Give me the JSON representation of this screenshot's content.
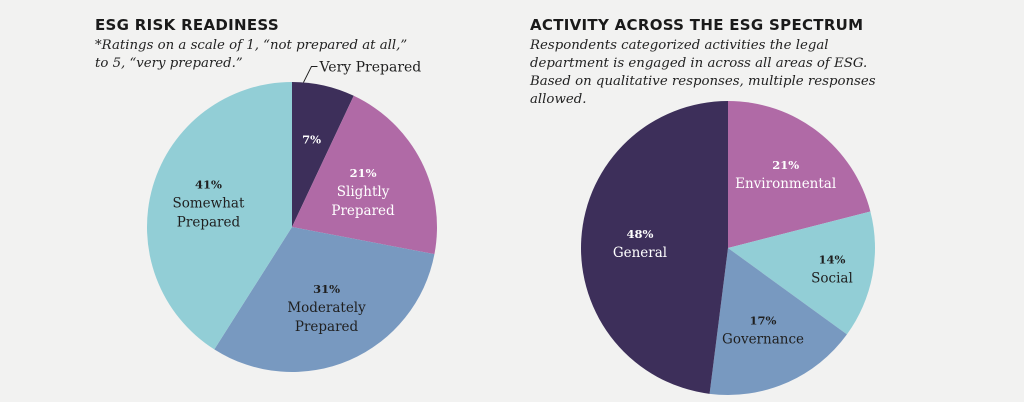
{
  "chart_data": [
    {
      "type": "pie",
      "title": "ESG RISK READINESS",
      "subtitle": "*Ratings on a scale of 1, “not prepared at all,” to 5, “very prepared.”",
      "slices": [
        {
          "label": "Very Prepared",
          "value": 7,
          "pct_label": "7%",
          "color": "#3d2f5a",
          "text_color": "#ffffff",
          "label_outside": true
        },
        {
          "label": "Slightly Prepared",
          "value": 21,
          "pct_label": "21%",
          "color": "#b06aa6",
          "text_color": "#ffffff"
        },
        {
          "label": "Moderately Prepared",
          "value": 31,
          "pct_label": "31%",
          "color": "#7899c0",
          "text_color": "#1f1f1f"
        },
        {
          "label": "Somewhat Prepared",
          "value": 41,
          "pct_label": "41%",
          "color": "#92ced6",
          "text_color": "#1f1f1f"
        }
      ]
    },
    {
      "type": "pie",
      "title": "ACTIVITY ACROSS THE ESG SPECTRUM",
      "subtitle": "Respondents categorized activities the legal department is engaged in across all areas of ESG. Based on qualitative responses, multiple responses allowed.",
      "slices": [
        {
          "label": "Environmental",
          "value": 21,
          "pct_label": "21%",
          "color": "#b06aa6",
          "text_color": "#ffffff"
        },
        {
          "label": "Social",
          "value": 14,
          "pct_label": "14%",
          "color": "#92ced6",
          "text_color": "#1f1f1f"
        },
        {
          "label": "Governance",
          "value": 17,
          "pct_label": "17%",
          "color": "#7899c0",
          "text_color": "#1f1f1f"
        },
        {
          "label": "General",
          "value": 48,
          "pct_label": "48%",
          "color": "#3d2f5a",
          "text_color": "#ffffff"
        }
      ]
    }
  ]
}
